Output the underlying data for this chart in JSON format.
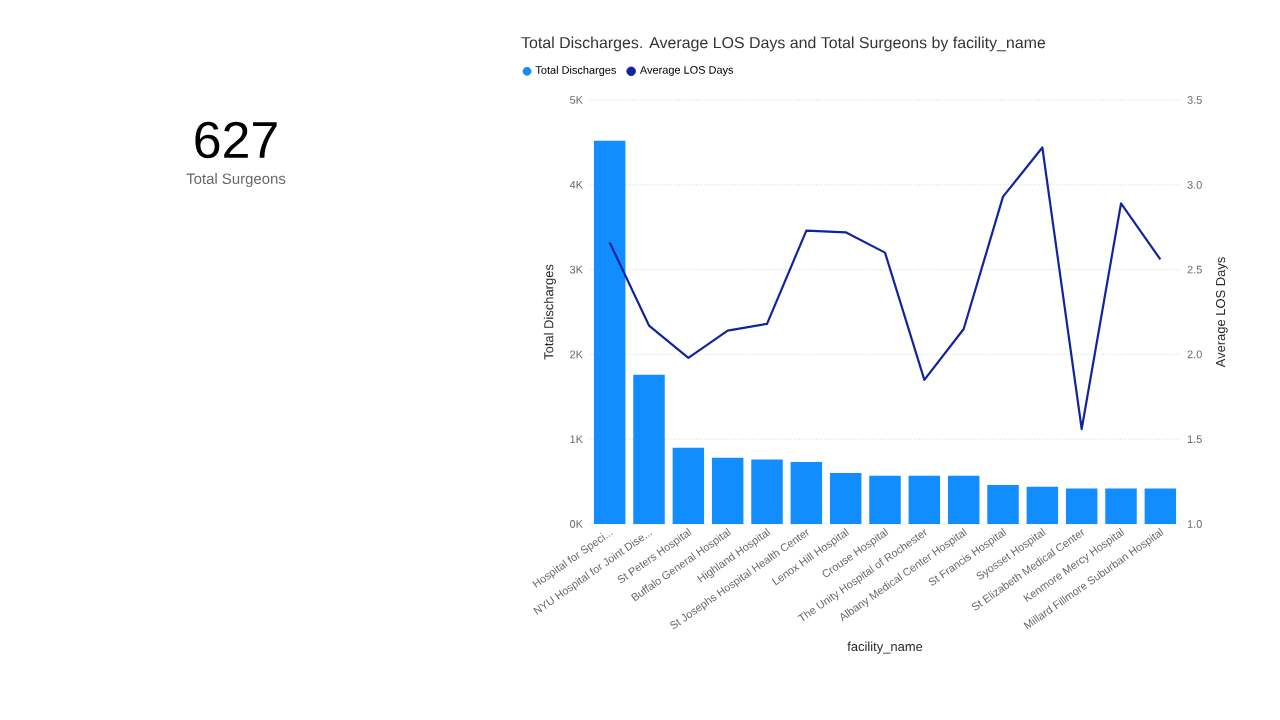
{
  "chart_data": [
    {
      "type": "other",
      "annotations": [
        "627",
        "Total Surgeons"
      ]
    },
    {
      "type": "bar",
      "title": "Total Discharges. Average LOS Days and Total Surgeons by facility_name",
      "xlabel": "facility_name",
      "ylabel": "Total Discharges",
      "y2label": "Average LOS Days",
      "categories": [
        "Hospital for Speci...",
        "NYU Hospital for Joint Dise...",
        "St Peters Hospital",
        "Buffalo General Hospital",
        "Highland Hospital",
        "St Josephs Hospital Health Center",
        "Lenox Hill Hospital",
        "Crouse Hospital",
        "The Unity Hospital of Rochester",
        "Albany Medical Center Hospital",
        "St Francis Hospital",
        "Syosset Hospital",
        "St Elizabeth Medical Center",
        "Kenmore Mercy Hospital",
        "Millard Fillmore Suburban Hospital"
      ],
      "series": [
        {
          "name": "Total Discharges",
          "type": "bar",
          "color": "#118dff",
          "values": [
            4520,
            1760,
            900,
            780,
            760,
            730,
            600,
            570,
            570,
            570,
            460,
            440,
            420,
            420,
            420
          ]
        },
        {
          "name": "Average LOS Days",
          "type": "line",
          "axis": "y2",
          "color": "#12239e",
          "values": [
            2.66,
            2.17,
            1.98,
            2.14,
            2.18,
            2.73,
            2.72,
            2.6,
            1.85,
            2.15,
            2.93,
            3.22,
            1.56,
            2.89,
            2.56
          ]
        }
      ],
      "ylim": [
        0,
        5000
      ],
      "yticks": [
        {
          "value": 0,
          "label": "0K"
        },
        {
          "value": 1000,
          "label": "1K"
        },
        {
          "value": 2000,
          "label": "2K"
        },
        {
          "value": 3000,
          "label": "3K"
        },
        {
          "value": 4000,
          "label": "4K"
        },
        {
          "value": 5000,
          "label": "5K"
        }
      ],
      "y2lim": [
        1,
        3.5
      ],
      "y2ticks": [
        {
          "value": 1,
          "label": "1.0"
        },
        {
          "value": 1.5,
          "label": "1.5"
        },
        {
          "value": 2,
          "label": "2.0"
        },
        {
          "value": 2.5,
          "label": "2.5"
        },
        {
          "value": 3,
          "label": "3.0"
        },
        {
          "value": 3.5,
          "label": "3.5"
        }
      ],
      "grid": "y",
      "legend": "top left",
      "marker": "none",
      "line_style": "solid"
    }
  ]
}
